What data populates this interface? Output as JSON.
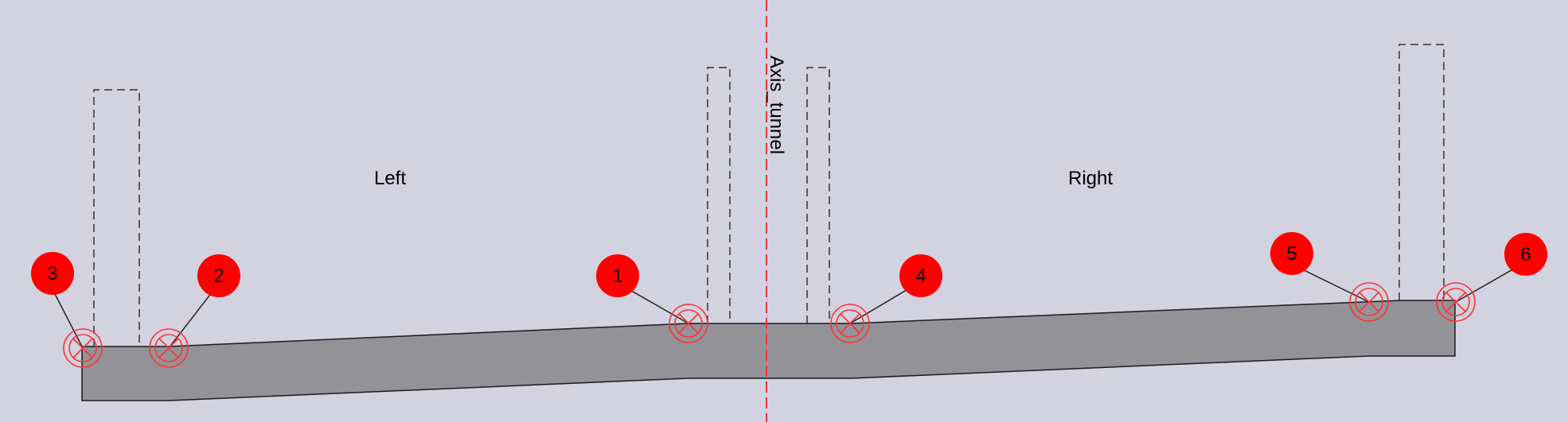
{
  "labels": {
    "left": "Left",
    "right": "Right",
    "axis": "Axis_tunnel"
  },
  "markers": [
    {
      "number": "1"
    },
    {
      "number": "2"
    },
    {
      "number": "3"
    },
    {
      "number": "4"
    },
    {
      "number": "5"
    },
    {
      "number": "6"
    }
  ],
  "colors": {
    "background": "#d3d2e0",
    "slab": "#939397",
    "marker": "#ff0000",
    "axis_line": "#e8383d",
    "outline": "#1a1a1a"
  },
  "icons": {
    "marker_symbol": "circle-x-icon"
  }
}
